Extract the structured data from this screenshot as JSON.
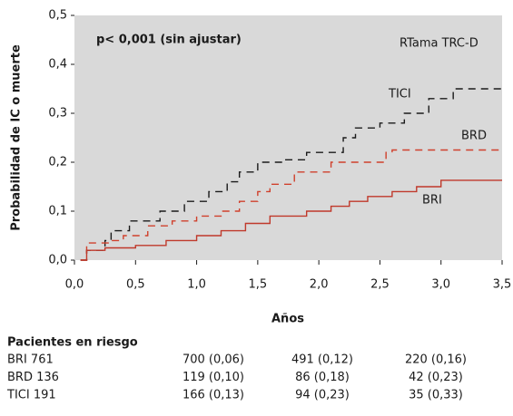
{
  "chart_data": {
    "type": "line",
    "step": "post",
    "annotations": [
      "p< 0,001 (sin ajustar)",
      "RTama TRC-D"
    ],
    "ylabel": "Probabilidad de IC o muerte",
    "xlabel": "Años",
    "xlim": [
      0,
      3.5
    ],
    "ylim": [
      0,
      0.5
    ],
    "xticks": [
      {
        "value": 0,
        "label": "0,0"
      },
      {
        "value": 0.5,
        "label": "0,5"
      },
      {
        "value": 1,
        "label": "1,0"
      },
      {
        "value": 1.5,
        "label": "1,5"
      },
      {
        "value": 2,
        "label": "2,0"
      },
      {
        "value": 2.5,
        "label": "2,5"
      },
      {
        "value": 3,
        "label": "3,0"
      },
      {
        "value": 3.5,
        "label": "3,5"
      }
    ],
    "yticks": [
      {
        "value": 0,
        "label": "0,0"
      },
      {
        "value": 0.1,
        "label": "0,1"
      },
      {
        "value": 0.2,
        "label": "0,2"
      },
      {
        "value": 0.3,
        "label": "0,3"
      },
      {
        "value": 0.4,
        "label": "0,4"
      },
      {
        "value": 0.5,
        "label": "0,5"
      }
    ],
    "background": "#d9d9d9",
    "series": [
      {
        "name": "TICI",
        "color": "#1a1a1a",
        "dashed": true,
        "x": [
          0.05,
          0.1,
          0.25,
          0.3,
          0.45,
          0.7,
          0.9,
          1.1,
          1.25,
          1.35,
          1.5,
          1.7,
          1.9,
          2.2,
          2.3,
          2.5,
          2.7,
          2.9,
          3.1,
          3.5
        ],
        "values": [
          0,
          0.02,
          0.04,
          0.06,
          0.08,
          0.1,
          0.12,
          0.14,
          0.16,
          0.18,
          0.2,
          0.205,
          0.22,
          0.25,
          0.27,
          0.28,
          0.3,
          0.33,
          0.35,
          0.35
        ]
      },
      {
        "name": "BRD",
        "color": "#d0402c",
        "dashed": true,
        "x": [
          0.05,
          0.1,
          0.3,
          0.4,
          0.6,
          0.8,
          1.0,
          1.2,
          1.35,
          1.5,
          1.6,
          1.8,
          2.1,
          2.55,
          2.6,
          3.5
        ],
        "values": [
          0,
          0.035,
          0.04,
          0.05,
          0.07,
          0.08,
          0.09,
          0.1,
          0.12,
          0.14,
          0.155,
          0.18,
          0.2,
          0.22,
          0.225,
          0.225
        ]
      },
      {
        "name": "BRI",
        "color": "#c0392b",
        "dashed": false,
        "x": [
          0.05,
          0.1,
          0.25,
          0.5,
          0.75,
          1.0,
          1.2,
          1.4,
          1.6,
          1.9,
          2.1,
          2.25,
          2.4,
          2.6,
          2.8,
          3.0,
          3.5
        ],
        "values": [
          0,
          0.02,
          0.025,
          0.03,
          0.04,
          0.05,
          0.06,
          0.075,
          0.09,
          0.1,
          0.11,
          0.12,
          0.13,
          0.14,
          0.15,
          0.163,
          0.163
        ]
      }
    ]
  },
  "risk_table": {
    "title": "Pacientes en riesgo",
    "rows": [
      [
        "BRI 761",
        "700 (0,06)",
        "491 (0,12)",
        "220 (0,16)"
      ],
      [
        "BRD 136",
        "119 (0,10)",
        "86 (0,18)",
        "42 (0,23)"
      ],
      [
        "TICI 191",
        "166 (0,13)",
        "94 (0,23)",
        "35 (0,33)"
      ]
    ]
  }
}
